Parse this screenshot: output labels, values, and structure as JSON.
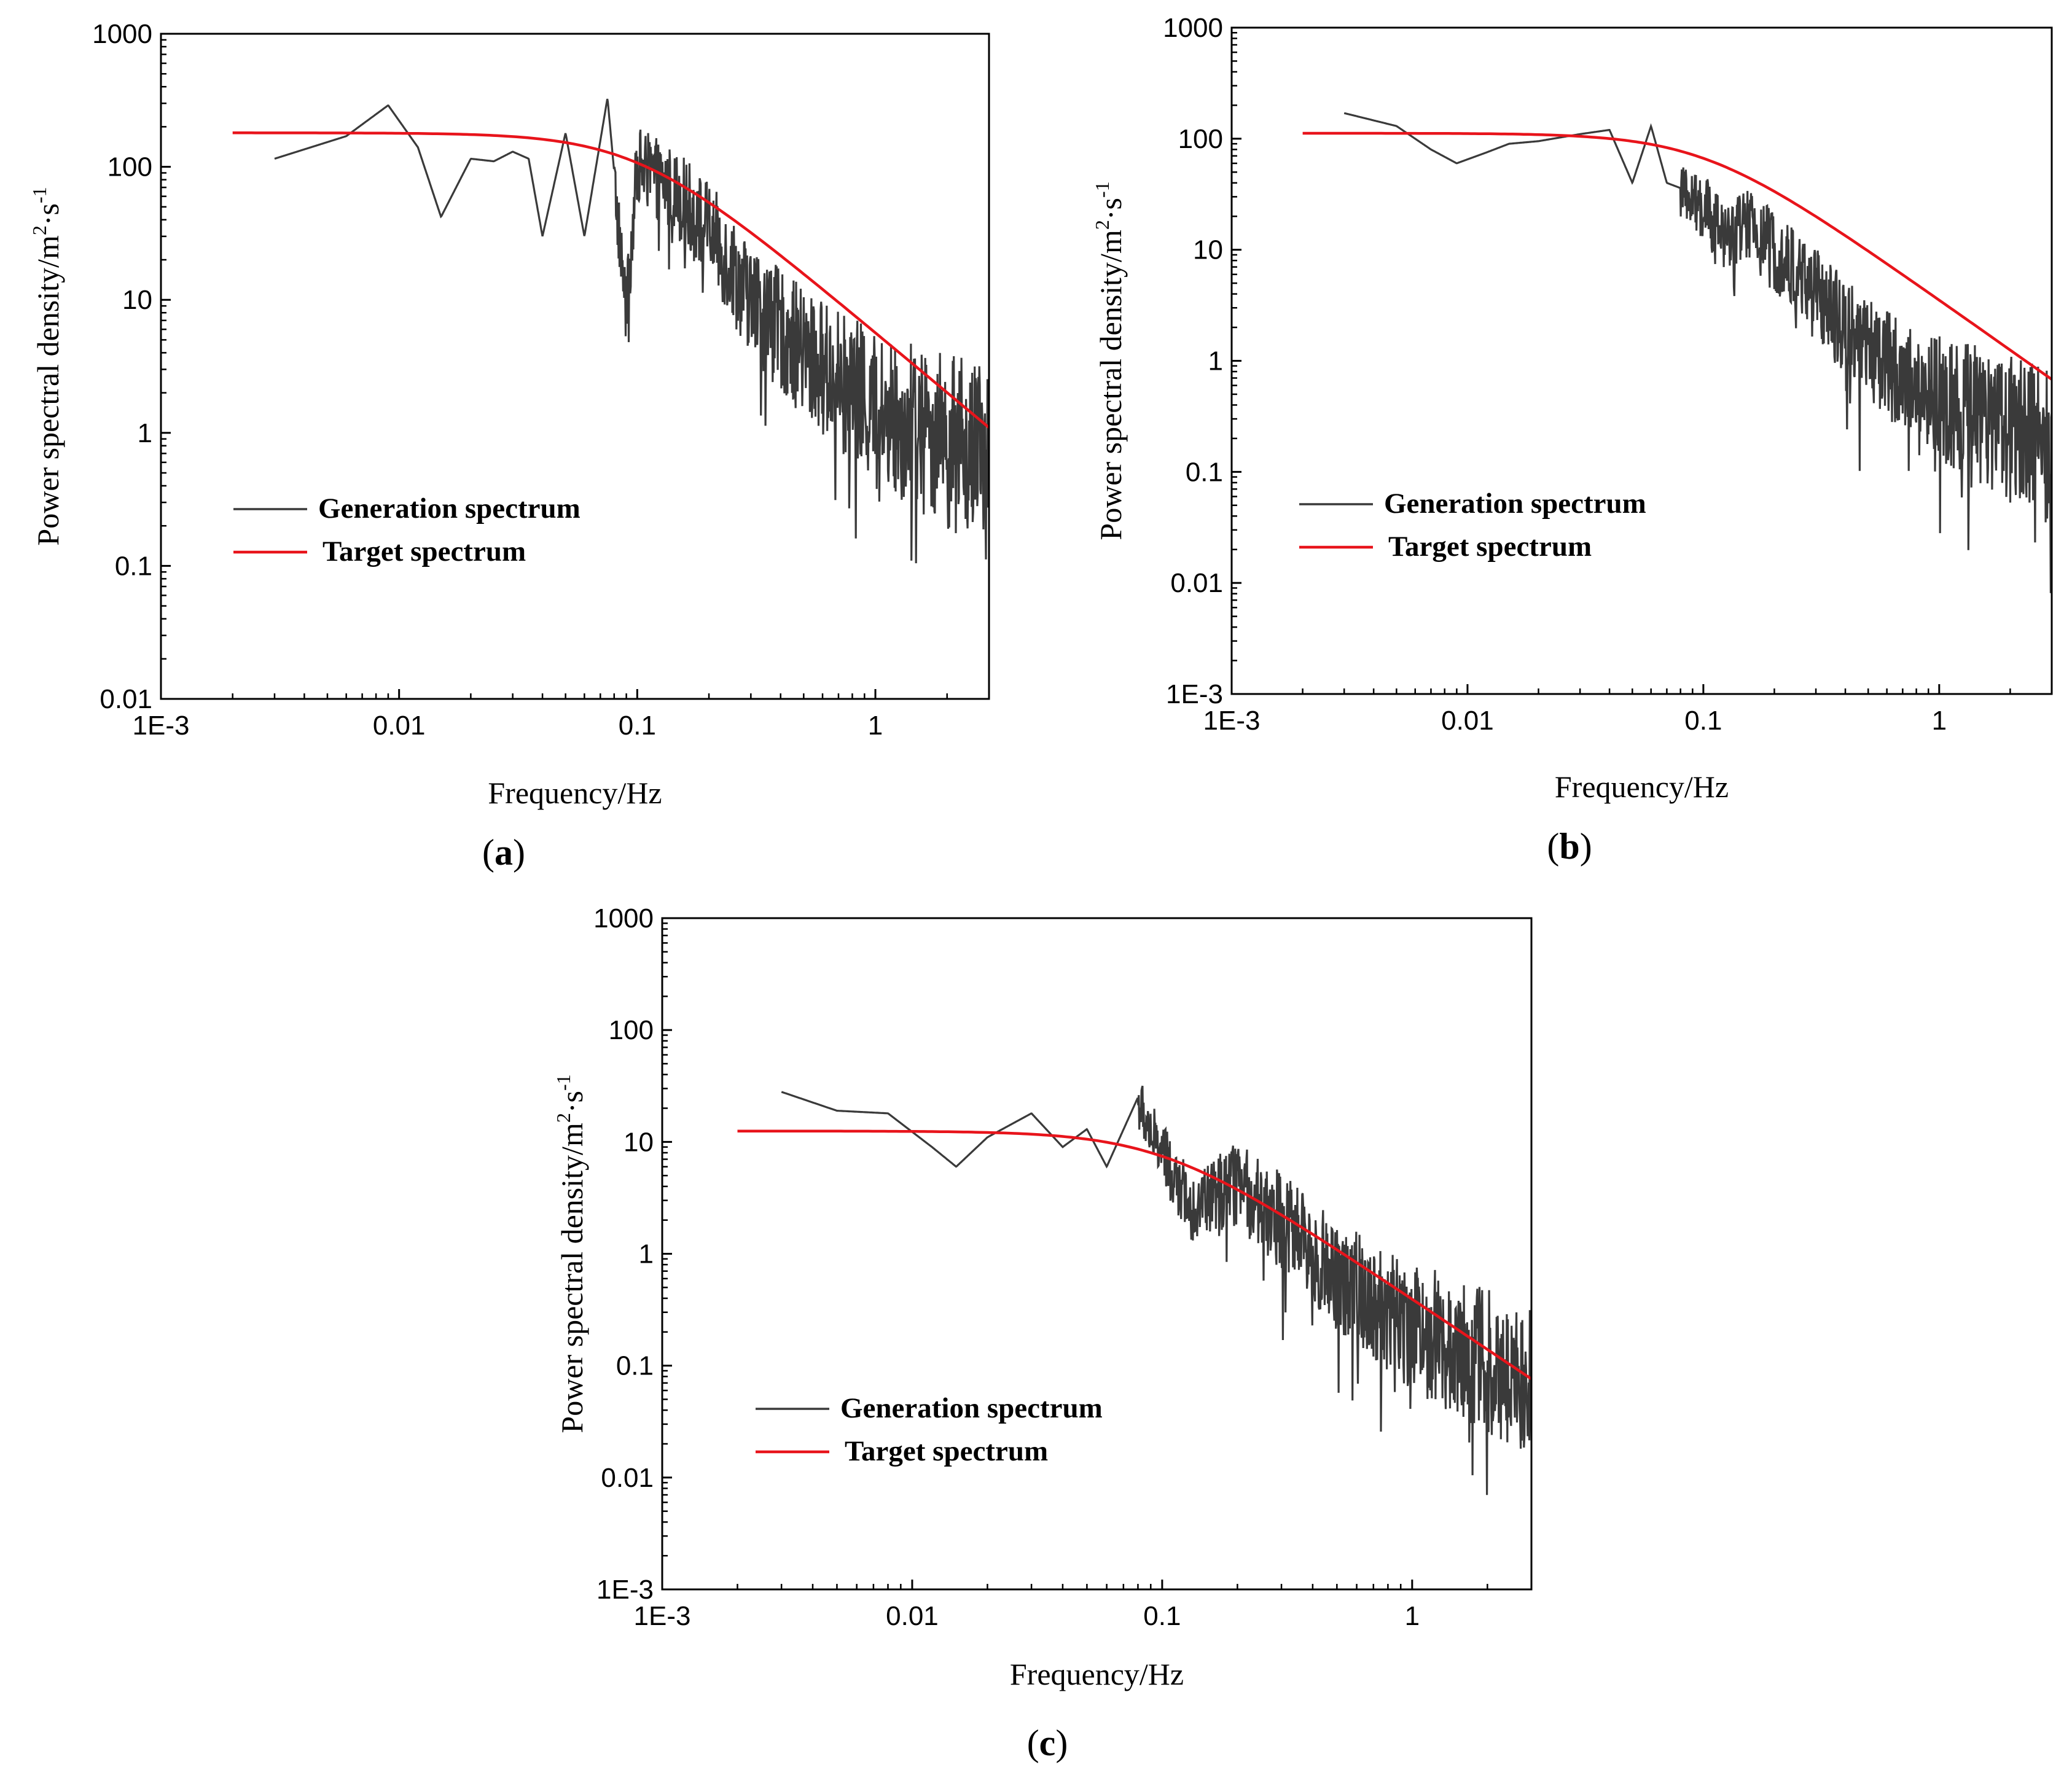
{
  "colors": {
    "generation": "#3a3a3a",
    "target": "#e8141b"
  },
  "chart_data": [
    {
      "panel": "a",
      "caption_open": "(",
      "caption_letter": "a",
      "caption_close": ")",
      "type": "line",
      "xscale": "log",
      "yscale": "log",
      "xlim": [
        0.001,
        3
      ],
      "ylim": [
        0.01,
        1000
      ],
      "xlabel": "Frequency/Hz",
      "ylabel_main": "Power spectral density/m",
      "ylabel_sup1": "2",
      "ylabel_mid": "·s",
      "ylabel_sup2": "-1",
      "xticks": [
        0.001,
        0.01,
        0.1,
        1
      ],
      "xtick_labels": [
        "1E-3",
        "0.01",
        "0.1",
        "1"
      ],
      "yticks": [
        0.01,
        0.1,
        1,
        10,
        100,
        1000
      ],
      "ytick_labels": [
        "0.01",
        "0.1",
        "1",
        "10",
        "100",
        "1000"
      ],
      "legend": [
        "Generation spectrum",
        "Target spectrum"
      ],
      "legend_position": "lower-left",
      "series": [
        {
          "name": "Generation spectrum",
          "x_start": 0.003,
          "x_end": 3,
          "anchors": [
            [
              0.003,
              115
            ],
            [
              0.006,
              170
            ],
            [
              0.009,
              290
            ],
            [
              0.012,
              140
            ],
            [
              0.015,
              42
            ],
            [
              0.02,
              115
            ],
            [
              0.025,
              110
            ],
            [
              0.03,
              130
            ],
            [
              0.035,
              115
            ],
            [
              0.04,
              30
            ],
            [
              0.05,
              180
            ],
            [
              0.06,
              30
            ],
            [
              0.075,
              330
            ],
            [
              0.09,
              9
            ],
            [
              0.1,
              120
            ],
            [
              0.15,
              70
            ],
            [
              0.2,
              40
            ],
            [
              0.3,
              12
            ],
            [
              0.5,
              5
            ],
            [
              1,
              2
            ],
            [
              2,
              1.2
            ],
            [
              3,
              0.8
            ]
          ]
        },
        {
          "name": "Target spectrum",
          "model": "plateau",
          "plateau": 180,
          "corner_hz": 0.1,
          "slope": -1.5,
          "x_start": 0.002,
          "x_end": 3
        }
      ]
    },
    {
      "panel": "b",
      "caption_open": "(",
      "caption_letter": "b",
      "caption_close": ")",
      "type": "line",
      "xscale": "log",
      "yscale": "log",
      "xlim": [
        0.001,
        3
      ],
      "ylim": [
        0.001,
        1000
      ],
      "xlabel": "Frequency/Hz",
      "ylabel_main": "Power spectral density/m",
      "ylabel_sup1": "2",
      "ylabel_mid": "·s",
      "ylabel_sup2": "-1",
      "xticks": [
        0.001,
        0.01,
        0.1,
        1
      ],
      "xtick_labels": [
        "1E-3",
        "0.01",
        "0.1",
        "1"
      ],
      "yticks": [
        0.001,
        0.01,
        0.1,
        1,
        10,
        100,
        1000
      ],
      "ytick_labels": [
        "1E-3",
        "0.01",
        "0.1",
        "1",
        "10",
        "100",
        "1000"
      ],
      "legend": [
        "Generation spectrum",
        "Target spectrum"
      ],
      "legend_position": "lower-left",
      "series": [
        {
          "name": "Generation spectrum",
          "x_start": 0.003,
          "x_end": 3,
          "anchors": [
            [
              0.003,
              170
            ],
            [
              0.005,
              130
            ],
            [
              0.007,
              80
            ],
            [
              0.009,
              60
            ],
            [
              0.012,
              75
            ],
            [
              0.015,
              90
            ],
            [
              0.02,
              95
            ],
            [
              0.03,
              110
            ],
            [
              0.04,
              120
            ],
            [
              0.05,
              40
            ],
            [
              0.06,
              130
            ],
            [
              0.07,
              40
            ],
            [
              0.1,
              30
            ],
            [
              0.12,
              15
            ],
            [
              0.15,
              20
            ],
            [
              0.2,
              12
            ],
            [
              0.3,
              5
            ],
            [
              0.5,
              1.5
            ],
            [
              1,
              0.6
            ],
            [
              2,
              0.35
            ],
            [
              3,
              0.25
            ]
          ]
        },
        {
          "name": "Target spectrum",
          "model": "plateau",
          "plateau": 112,
          "corner_hz": 0.1,
          "slope": -1.5,
          "x_start": 0.002,
          "x_end": 3
        }
      ]
    },
    {
      "panel": "c",
      "caption_open": "(",
      "caption_letter": "c",
      "caption_close": ")",
      "type": "line",
      "xscale": "log",
      "yscale": "log",
      "xlim": [
        0.001,
        3
      ],
      "ylim": [
        0.001,
        1000
      ],
      "xlabel": "Frequency/Hz",
      "ylabel_main": "Power spectral density/m",
      "ylabel_sup1": "2",
      "ylabel_mid": "·s",
      "ylabel_sup2": "-1",
      "xticks": [
        0.001,
        0.01,
        0.1,
        1
      ],
      "xtick_labels": [
        "1E-3",
        "0.01",
        "0.1",
        "1"
      ],
      "yticks": [
        0.001,
        0.01,
        0.1,
        1,
        10,
        100,
        1000
      ],
      "ytick_labels": [
        "1E-3",
        "0.01",
        "0.1",
        "1",
        "10",
        "100",
        "1000"
      ],
      "legend": [
        "Generation spectrum",
        "Target spectrum"
      ],
      "legend_position": "lower-left",
      "series": [
        {
          "name": "Generation spectrum",
          "x_start": 0.003,
          "x_end": 3,
          "anchors": [
            [
              0.003,
              28
            ],
            [
              0.005,
              19
            ],
            [
              0.008,
              18
            ],
            [
              0.012,
              9
            ],
            [
              0.015,
              6
            ],
            [
              0.02,
              11
            ],
            [
              0.03,
              18
            ],
            [
              0.04,
              9
            ],
            [
              0.05,
              13
            ],
            [
              0.06,
              6
            ],
            [
              0.08,
              25
            ],
            [
              0.1,
              9
            ],
            [
              0.13,
              3
            ],
            [
              0.2,
              5
            ],
            [
              0.3,
              2.5
            ],
            [
              0.5,
              0.8
            ],
            [
              1,
              0.3
            ],
            [
              2,
              0.15
            ],
            [
              3,
              0.1
            ]
          ]
        },
        {
          "name": "Target spectrum",
          "model": "plateau",
          "plateau": 12.5,
          "corner_hz": 0.1,
          "slope": -1.5,
          "x_start": 0.002,
          "x_end": 3
        }
      ]
    }
  ]
}
